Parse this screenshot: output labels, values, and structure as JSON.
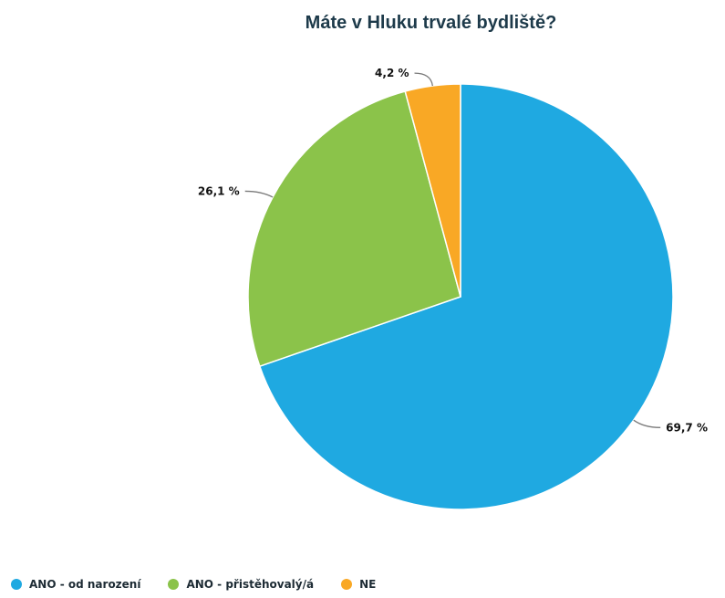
{
  "chart_data": {
    "type": "pie",
    "title": "Máte v Hluku trvalé bydliště?",
    "slices": [
      {
        "name": "ANO - od narození",
        "value": 69.7,
        "label": "69,7 %",
        "color": "#1fa9e1"
      },
      {
        "name": "ANO - přistěhovalý/á",
        "value": 26.1,
        "label": "26,1 %",
        "color": "#8bc34a"
      },
      {
        "name": "NE",
        "value": 4.2,
        "label": "4,2 %",
        "color": "#f9a825"
      }
    ],
    "legend_position": "bottom-left"
  }
}
